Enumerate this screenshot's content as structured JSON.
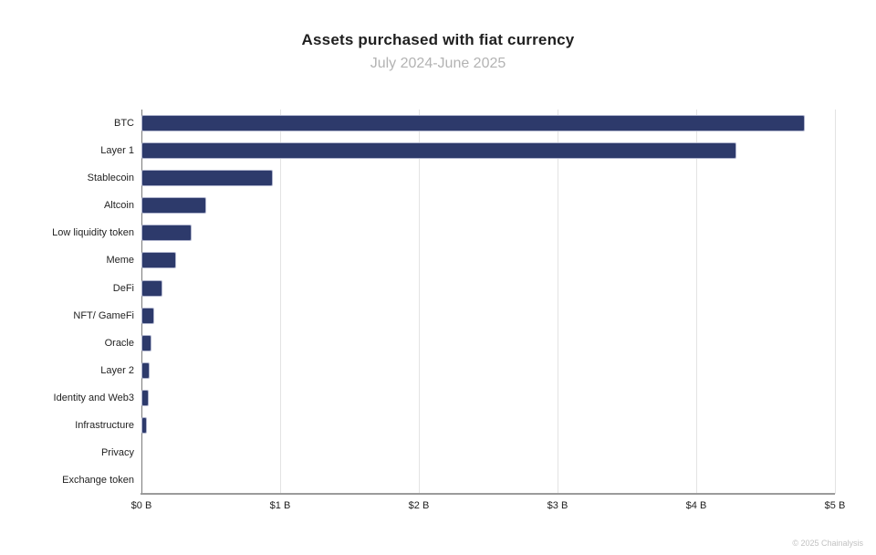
{
  "header": {
    "title": "Assets purchased with fiat currency",
    "subtitle": "July 2024-June 2025"
  },
  "footer": {
    "credit": "© 2025 Chainalysis"
  },
  "colors": {
    "bar": "#2d3a6b",
    "bar_border": "#aeb3cc",
    "grid": "#e3e3e3",
    "yaxis_line": "#7a7a7a",
    "axis_line": "#9b9b9b",
    "title": "#1f1f1f",
    "subtitle": "#b3b3b3",
    "label": "#1f1f1f",
    "credit": "#c2c2c2"
  },
  "chart_data": {
    "type": "bar",
    "orientation": "horizontal",
    "title": "Assets purchased with fiat currency",
    "subtitle": "July 2024-June 2025",
    "unit": "USD billions",
    "categories": [
      "BTC",
      "Layer 1",
      "Stablecoin",
      "Altcoin",
      "Low liquidity token",
      "Meme",
      "DeFi",
      "NFT/ GameFi",
      "Oracle",
      "Layer 2",
      "Identity and Web3",
      "Infrastructure",
      "Privacy",
      "Exchange token"
    ],
    "values": [
      4.78,
      4.29,
      0.95,
      0.47,
      0.36,
      0.25,
      0.15,
      0.09,
      0.07,
      0.06,
      0.05,
      0.04,
      0,
      0
    ],
    "xlabel": "",
    "ylabel": "",
    "xlim": [
      0,
      5
    ],
    "x_ticks": [
      "$0 B",
      "$1 B",
      "$2 B",
      "$3 B",
      "$4 B",
      "$5 B"
    ],
    "grid": true,
    "legend": false
  }
}
